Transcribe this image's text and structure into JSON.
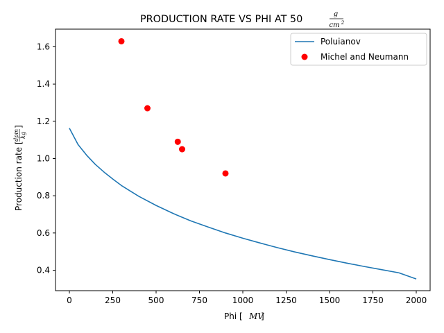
{
  "chart_data": {
    "type": "line",
    "title": "PRODUCTION RATE VS PHI AT 50",
    "title_units": {
      "numerator": "g",
      "denominator": "cm",
      "denominator_exponent": "2"
    },
    "xlabel": "Phi [",
    "xlabel_unit": "MV",
    "xlabel_close": "]",
    "ylabel": "Production rate [",
    "ylabel_unit": {
      "numerator": "dpm",
      "denominator": "kg"
    },
    "ylabel_close": "]",
    "xlim": [
      -80,
      2080
    ],
    "ylim": [
      0.29,
      1.695
    ],
    "xticks": [
      0,
      250,
      500,
      750,
      1000,
      1250,
      1500,
      1750,
      2000
    ],
    "yticks": [
      0.4,
      0.6,
      0.8,
      1.0,
      1.2,
      1.4,
      1.6
    ],
    "grid": false,
    "legend_position": "top-right",
    "series": [
      {
        "name": "Poluianov",
        "kind": "line",
        "color": "#1f77b4",
        "x": [
          0,
          50,
          100,
          150,
          200,
          250,
          300,
          400,
          500,
          600,
          700,
          800,
          900,
          1000,
          1100,
          1200,
          1300,
          1400,
          1500,
          1600,
          1700,
          1800,
          1900,
          2000
        ],
        "y": [
          1.163,
          1.075,
          1.017,
          0.968,
          0.927,
          0.89,
          0.855,
          0.797,
          0.748,
          0.704,
          0.665,
          0.632,
          0.6,
          0.572,
          0.546,
          0.521,
          0.498,
          0.477,
          0.457,
          0.438,
          0.42,
          0.403,
          0.386,
          0.353
        ]
      },
      {
        "name": "Michel and Neumann",
        "kind": "scatter",
        "color": "#ff0000",
        "x": [
          300,
          450,
          625,
          650,
          900
        ],
        "y": [
          1.63,
          1.27,
          1.09,
          1.05,
          0.92
        ]
      }
    ]
  }
}
